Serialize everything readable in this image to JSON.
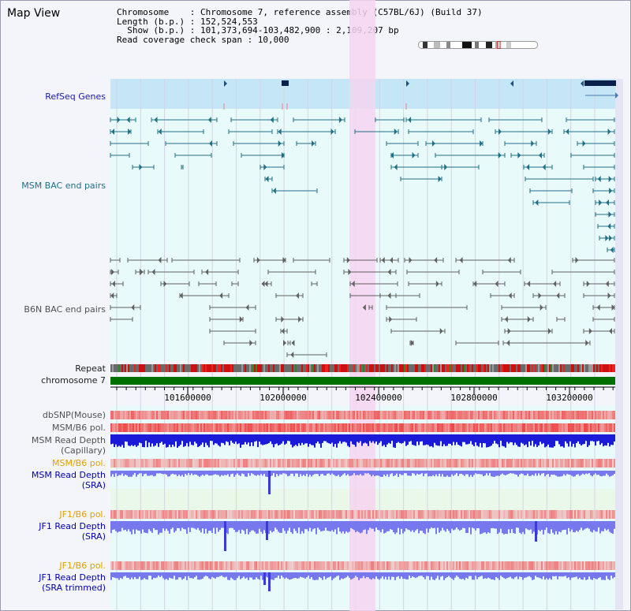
{
  "title": "Map View",
  "info": {
    "chromosome_line": "Chromosome    : Chromosome 7, reference assembly (C57BL/6J) (Build 37)",
    "length_line": "Length (b.p.) : 152,524,553",
    "show_line": "  Show (b.p.) : 101,373,694-103,482,900 : 2,109,207 bp",
    "coverage_line": "Read coverage check span : 10,000"
  },
  "tracks": {
    "refseq": "RefSeq Genes",
    "msm_bac": "MSM BAC end pairs",
    "b6n_bac": "B6N BAC end pairs",
    "repeat": "Repeat",
    "chromosome": "chromosome 7",
    "dbsnp": "dbSNP(Mouse)",
    "msm_b6_pol_1": "MSM/B6 pol.",
    "msm_read_depth_cap_1": "MSM Read Depth",
    "msm_read_depth_cap_2": "(Capillary)",
    "msm_b6_pol_2": "MSM/B6 pol.",
    "msm_read_depth_sra_1": "MSM Read Depth",
    "msm_read_depth_sra_2": "(SRA)",
    "jf1_b6_pol_1": "JF1/B6 pol.",
    "jf1_read_depth_sra_1": "JF1 Read Depth",
    "jf1_read_depth_sra_2": "(SRA)",
    "jf1_b6_pol_2": "JF1/B6 pol.",
    "jf1_read_depth_trim_1": "JF1 Read Depth",
    "jf1_read_depth_trim_2": "(SRA trimmed)"
  },
  "axis": {
    "ticks": [
      "101600000",
      "102000000",
      "102400000",
      "102800000",
      "103200000"
    ]
  },
  "colors": {
    "refseq_bg": "#c4e6f6",
    "track_bg": "#e8fafa",
    "highlight": "#f6d4f0",
    "chromosome_bar": "#007000",
    "msm_feature": "#1f6f86",
    "b6n_feature": "#606060",
    "depth_dark": "#1a1ad8",
    "depth_light": "#7878ee",
    "snp_red": "#ee3030"
  }
}
